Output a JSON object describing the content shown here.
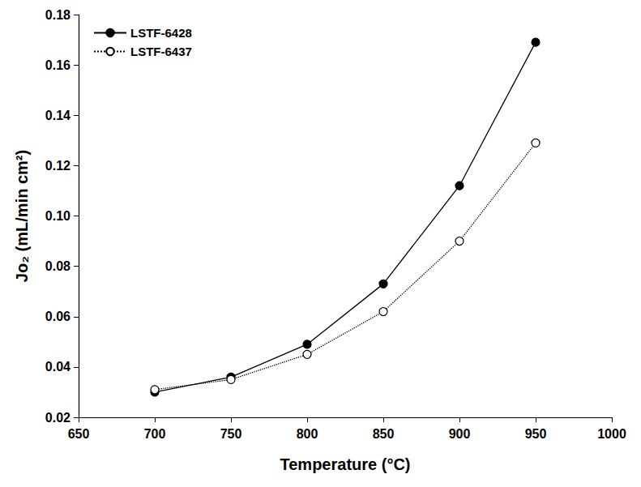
{
  "chart_data": {
    "type": "line",
    "x_label": "Temperature (°C)",
    "y_label": "Jo₂ (mL/min cm²)",
    "xlim": [
      650,
      1000
    ],
    "xticks": [
      650,
      700,
      750,
      800,
      850,
      900,
      950,
      1000
    ],
    "ylim": [
      0.02,
      0.18
    ],
    "yticks": [
      0.02,
      0.04,
      0.06,
      0.08,
      {
        "value": 0.1,
        "label": "0.10"
      },
      0.12,
      0.14,
      0.16,
      0.18
    ],
    "grid": false,
    "legend": "upper left",
    "series": [
      {
        "name": "LSTF-6428",
        "color": "#000000",
        "marker": "filled_circle",
        "line_style": "solid",
        "x": [
          700,
          750,
          800,
          850,
          900,
          950
        ],
        "values": [
          0.03,
          0.036,
          0.049,
          0.073,
          0.112,
          0.169
        ]
      },
      {
        "name": "LSTF-6437",
        "color": "#000000",
        "marker": "open_circle",
        "line_style": "dotted",
        "x": [
          700,
          750,
          800,
          850,
          900,
          950
        ],
        "values": [
          0.031,
          0.035,
          0.045,
          0.062,
          0.09,
          0.129
        ]
      }
    ]
  }
}
